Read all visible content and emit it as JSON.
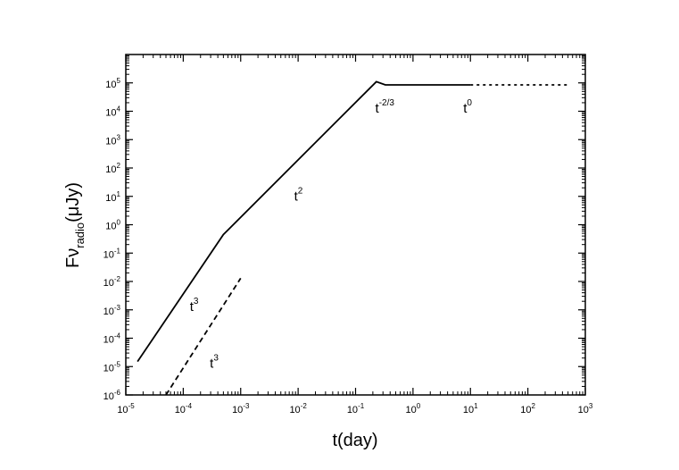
{
  "chart_data": {
    "type": "line",
    "title": "",
    "xlabel": "t(day)",
    "ylabel": {
      "main": "Fν",
      "sub": "radio",
      "unit": "(μJy)"
    },
    "x_scale": "log",
    "y_scale": "log",
    "xlim": [
      1e-05,
      1000
    ],
    "ylim": [
      1e-06,
      1000000
    ],
    "grid": false,
    "x_ticks": [
      {
        "base": "10",
        "exp": "-5",
        "value": 1e-05
      },
      {
        "base": "10",
        "exp": "-4",
        "value": 0.0001
      },
      {
        "base": "10",
        "exp": "-3",
        "value": 0.001
      },
      {
        "base": "10",
        "exp": "-2",
        "value": 0.01
      },
      {
        "base": "10",
        "exp": "-1",
        "value": 0.1
      },
      {
        "base": "10",
        "exp": "0",
        "value": 1
      },
      {
        "base": "10",
        "exp": "1",
        "value": 10
      },
      {
        "base": "10",
        "exp": "2",
        "value": 100
      },
      {
        "base": "10",
        "exp": "3",
        "value": 1000
      }
    ],
    "y_ticks": [
      {
        "base": "10",
        "exp": "-6",
        "value": 1e-06
      },
      {
        "base": "10",
        "exp": "-5",
        "value": 1e-05
      },
      {
        "base": "10",
        "exp": "-4",
        "value": 0.0001
      },
      {
        "base": "10",
        "exp": "-3",
        "value": 0.001
      },
      {
        "base": "10",
        "exp": "-2",
        "value": 0.01
      },
      {
        "base": "10",
        "exp": "-1",
        "value": 0.1
      },
      {
        "base": "10",
        "exp": "0",
        "value": 1
      },
      {
        "base": "10",
        "exp": "1",
        "value": 10
      },
      {
        "base": "10",
        "exp": "2",
        "value": 100
      },
      {
        "base": "10",
        "exp": "3",
        "value": 1000
      },
      {
        "base": "10",
        "exp": "4",
        "value": 10000
      },
      {
        "base": "10",
        "exp": "5",
        "value": 100000
      }
    ],
    "series": [
      {
        "style": "solid",
        "x": [
          1.6e-05,
          0.0005,
          0.23,
          0.33,
          10
        ],
        "y": [
          1.5e-05,
          0.45,
          110000,
          85000,
          85000
        ]
      },
      {
        "style": "dotted",
        "x": [
          10,
          500
        ],
        "y": [
          85000,
          85000
        ]
      },
      {
        "style": "dashed",
        "x": [
          5e-05,
          0.001
        ],
        "y": [
          1e-06,
          0.013
        ]
      }
    ],
    "annotations": [
      {
        "base": "t",
        "exp": "3",
        "x": 0.00013,
        "y": 0.0009
      },
      {
        "base": "t",
        "exp": "3",
        "x": 0.00029,
        "y": 9e-06
      },
      {
        "base": "t",
        "exp": "2",
        "x": 0.0085,
        "y": 7
      },
      {
        "base": "t",
        "exp": "-2/3",
        "x": 0.22,
        "y": 9000
      },
      {
        "base": "t",
        "exp": "0",
        "x": 7.5,
        "y": 9000
      }
    ]
  }
}
